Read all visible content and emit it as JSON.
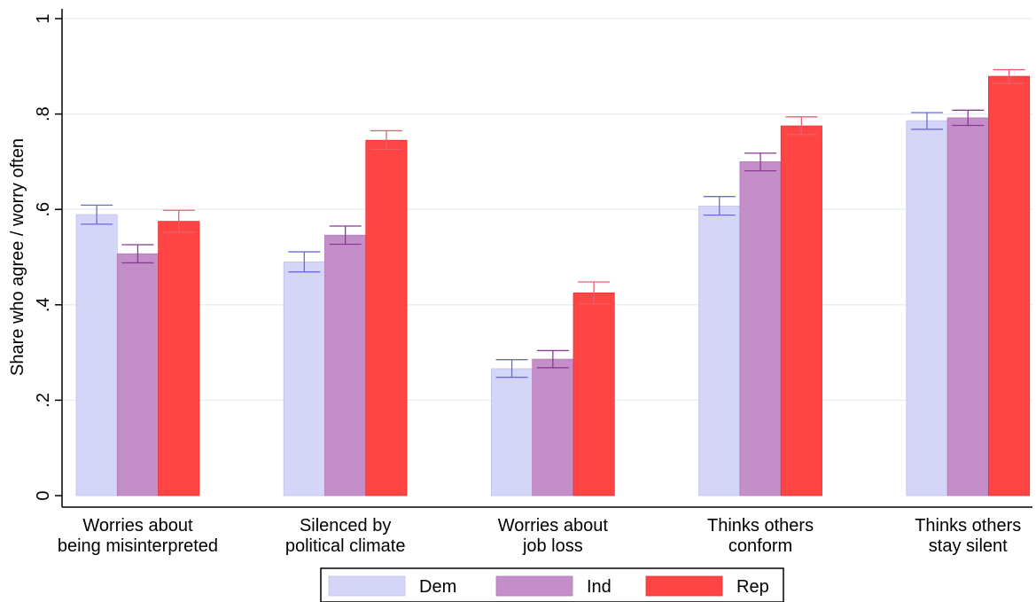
{
  "chart_data": {
    "type": "bar",
    "ylabel": "Share who agree / worry often",
    "xlabel": "",
    "ylim": [
      0,
      1
    ],
    "yticks": [
      {
        "value": 0,
        "label": "0"
      },
      {
        "value": 0.2,
        "label": ".2"
      },
      {
        "value": 0.4,
        "label": ".4"
      },
      {
        "value": 0.6,
        "label": ".6"
      },
      {
        "value": 0.8,
        "label": ".8"
      },
      {
        "value": 1,
        "label": "1"
      }
    ],
    "grid": true,
    "legend_position": "bottom",
    "categories": [
      [
        "Worries about",
        "being misinterpreted"
      ],
      [
        "Silenced by",
        "political climate"
      ],
      [
        "Worries about",
        "job loss"
      ],
      [
        "Thinks others",
        "conform"
      ],
      [
        "Thinks others",
        "stay silent"
      ]
    ],
    "series": [
      {
        "name": "Dem",
        "color": "#d5d5f8",
        "edge": "#c0c0f0",
        "ci_color": "#6a6ae0",
        "values": [
          0.589,
          0.49,
          0.266,
          0.607,
          0.786
        ],
        "ci_low": [
          0.569,
          0.469,
          0.248,
          0.588,
          0.768
        ],
        "ci_high": [
          0.609,
          0.511,
          0.285,
          0.627,
          0.803
        ]
      },
      {
        "name": "Ind",
        "color": "#c48ec9",
        "edge": "#b07ab8",
        "ci_color": "#8a3a95",
        "values": [
          0.507,
          0.546,
          0.286,
          0.7,
          0.792
        ],
        "ci_low": [
          0.488,
          0.527,
          0.268,
          0.681,
          0.776
        ],
        "ci_high": [
          0.526,
          0.565,
          0.304,
          0.718,
          0.808
        ]
      },
      {
        "name": "Rep",
        "color": "#ff4444",
        "edge": "#e83030",
        "ci_color": "#e86070",
        "values": [
          0.575,
          0.745,
          0.425,
          0.775,
          0.879
        ],
        "ci_low": [
          0.552,
          0.726,
          0.402,
          0.757,
          0.864
        ],
        "ci_high": [
          0.598,
          0.765,
          0.448,
          0.794,
          0.893
        ]
      }
    ]
  }
}
